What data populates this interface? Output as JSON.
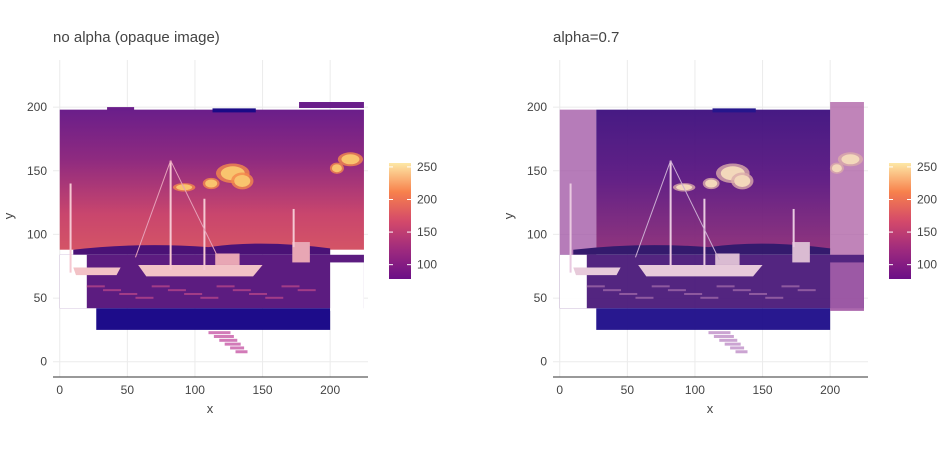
{
  "chart_data": [
    {
      "type": "heatmap",
      "title": "no alpha (opaque image)",
      "xlabel": "x",
      "ylabel": "y",
      "xlim": [
        -5,
        228
      ],
      "ylim": [
        -12,
        237
      ],
      "x_ticks": [
        0,
        50,
        100,
        150,
        200
      ],
      "y_ticks": [
        0,
        50,
        100,
        150,
        200
      ],
      "grid": true,
      "alpha": 1.0,
      "colorscale": "plasma-magma",
      "colorbar": {
        "ticks": [
          100,
          150,
          200,
          250
        ],
        "range": [
          78,
          256
        ]
      },
      "image_extent": {
        "x": [
          0,
          225
        ],
        "y": [
          25,
          204
        ]
      }
    },
    {
      "type": "heatmap",
      "title": "alpha=0.7",
      "xlabel": "x",
      "ylabel": "y",
      "xlim": [
        -5,
        228
      ],
      "ylim": [
        -12,
        237
      ],
      "x_ticks": [
        0,
        50,
        100,
        150,
        200
      ],
      "y_ticks": [
        0,
        50,
        100,
        150,
        200
      ],
      "grid": true,
      "alpha": 0.7,
      "colorscale": "plasma-magma",
      "colorbar": {
        "ticks": [
          100,
          150,
          200,
          250
        ],
        "range": [
          78,
          256
        ]
      },
      "image_extent": {
        "x": [
          0,
          225
        ],
        "y": [
          25,
          204
        ]
      }
    }
  ]
}
